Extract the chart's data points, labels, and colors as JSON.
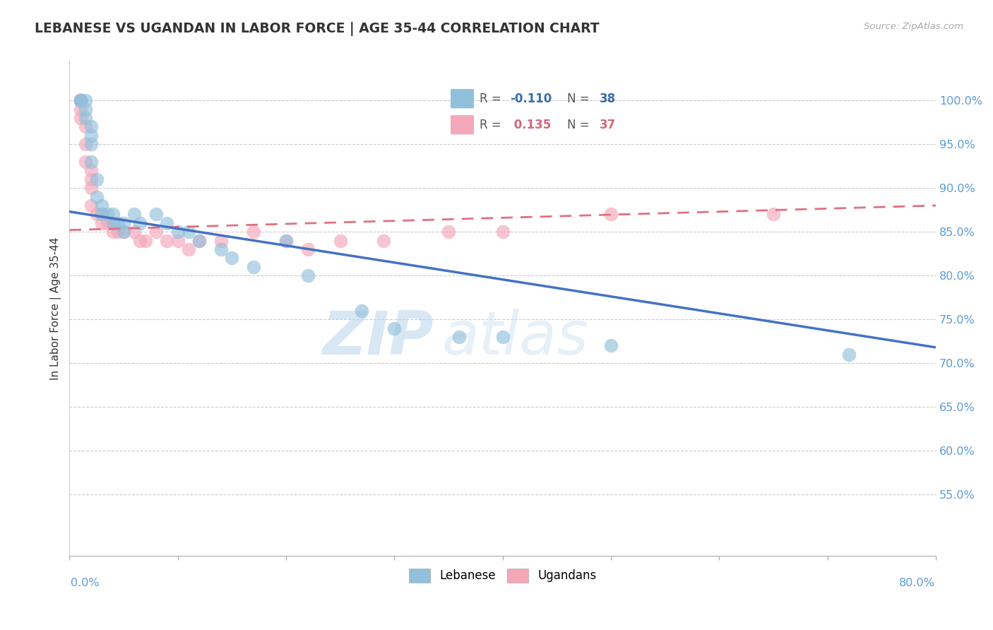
{
  "title": "LEBANESE VS UGANDAN IN LABOR FORCE | AGE 35-44 CORRELATION CHART",
  "source": "Source: ZipAtlas.com",
  "ylabel": "In Labor Force | Age 35-44",
  "ytick_labels": [
    "55.0%",
    "60.0%",
    "65.0%",
    "70.0%",
    "75.0%",
    "80.0%",
    "85.0%",
    "90.0%",
    "95.0%",
    "100.0%"
  ],
  "ytick_values": [
    0.55,
    0.6,
    0.65,
    0.7,
    0.75,
    0.8,
    0.85,
    0.9,
    0.95,
    1.0
  ],
  "xmin": 0.0,
  "xmax": 0.8,
  "ymin": 0.48,
  "ymax": 1.045,
  "r_lebanese": -0.11,
  "n_lebanese": 38,
  "r_ugandan": 0.135,
  "n_ugandan": 37,
  "blue_color": "#92C0DC",
  "pink_color": "#F4A7B9",
  "blue_line_color": "#4472C4",
  "pink_line_color": "#E07080",
  "lebanese_x": [
    0.01,
    0.01,
    0.01,
    0.015,
    0.015,
    0.015,
    0.02,
    0.02,
    0.02,
    0.02,
    0.025,
    0.025,
    0.03,
    0.03,
    0.035,
    0.04,
    0.04,
    0.045,
    0.05,
    0.05,
    0.06,
    0.065,
    0.08,
    0.09,
    0.1,
    0.11,
    0.12,
    0.14,
    0.15,
    0.17,
    0.2,
    0.22,
    0.27,
    0.3,
    0.36,
    0.4,
    0.5,
    0.72
  ],
  "lebanese_y": [
    1.0,
    1.0,
    1.0,
    1.0,
    0.99,
    0.98,
    0.97,
    0.96,
    0.95,
    0.93,
    0.91,
    0.89,
    0.88,
    0.87,
    0.87,
    0.87,
    0.86,
    0.86,
    0.86,
    0.85,
    0.87,
    0.86,
    0.87,
    0.86,
    0.85,
    0.85,
    0.84,
    0.83,
    0.82,
    0.81,
    0.84,
    0.8,
    0.76,
    0.74,
    0.73,
    0.73,
    0.72,
    0.71
  ],
  "ugandan_x": [
    0.01,
    0.01,
    0.01,
    0.01,
    0.015,
    0.015,
    0.015,
    0.02,
    0.02,
    0.02,
    0.02,
    0.025,
    0.03,
    0.03,
    0.035,
    0.04,
    0.04,
    0.045,
    0.05,
    0.06,
    0.065,
    0.07,
    0.08,
    0.09,
    0.1,
    0.11,
    0.12,
    0.14,
    0.17,
    0.2,
    0.22,
    0.25,
    0.29,
    0.35,
    0.4,
    0.5,
    0.65
  ],
  "ugandan_y": [
    1.0,
    1.0,
    0.99,
    0.98,
    0.97,
    0.95,
    0.93,
    0.92,
    0.91,
    0.9,
    0.88,
    0.87,
    0.87,
    0.86,
    0.86,
    0.86,
    0.85,
    0.85,
    0.85,
    0.85,
    0.84,
    0.84,
    0.85,
    0.84,
    0.84,
    0.83,
    0.84,
    0.84,
    0.85,
    0.84,
    0.83,
    0.84,
    0.84,
    0.85,
    0.85,
    0.87,
    0.87
  ],
  "leb_line_x0": 0.0,
  "leb_line_x1": 0.8,
  "leb_line_y0": 0.873,
  "leb_line_y1": 0.718,
  "uga_line_x0": 0.0,
  "uga_line_x1": 0.8,
  "uga_line_y0": 0.852,
  "uga_line_y1": 0.88
}
